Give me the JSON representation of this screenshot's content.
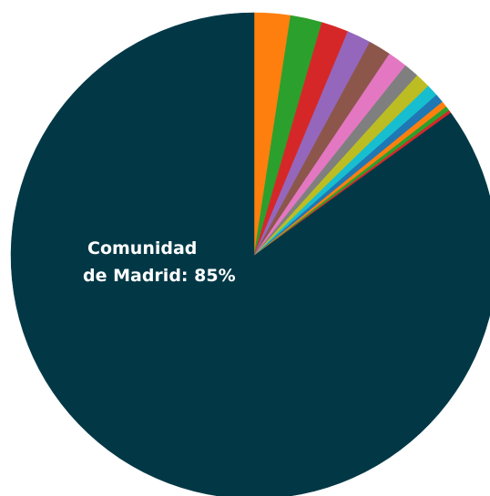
{
  "chart_data": {
    "type": "pie",
    "title": "",
    "slices": [
      {
        "label": "Comunidad de Madrid",
        "value": 85.0,
        "color": "#023846",
        "label_text": [
          "Comunidad",
          "de Madrid: 85%"
        ]
      },
      {
        "label": "",
        "value": 2.4,
        "color": "#ff7f0e"
      },
      {
        "label": "",
        "value": 2.1,
        "color": "#2ca02c"
      },
      {
        "label": "",
        "value": 1.8,
        "color": "#d62728"
      },
      {
        "label": "",
        "value": 1.6,
        "color": "#9467bd"
      },
      {
        "label": "",
        "value": 1.5,
        "color": "#8c564b"
      },
      {
        "label": "",
        "value": 1.3,
        "color": "#e377c2"
      },
      {
        "label": "",
        "value": 1.0,
        "color": "#7f7f7f"
      },
      {
        "label": "",
        "value": 1.0,
        "color": "#bcbd22"
      },
      {
        "label": "",
        "value": 0.8,
        "color": "#17becf"
      },
      {
        "label": "",
        "value": 0.6,
        "color": "#1f77b4"
      },
      {
        "label": "",
        "value": 0.4,
        "color": "#ff7f0e"
      },
      {
        "label": "",
        "value": 0.3,
        "color": "#2ca02c"
      },
      {
        "label": "",
        "value": 0.2,
        "color": "#d62728"
      }
    ]
  }
}
